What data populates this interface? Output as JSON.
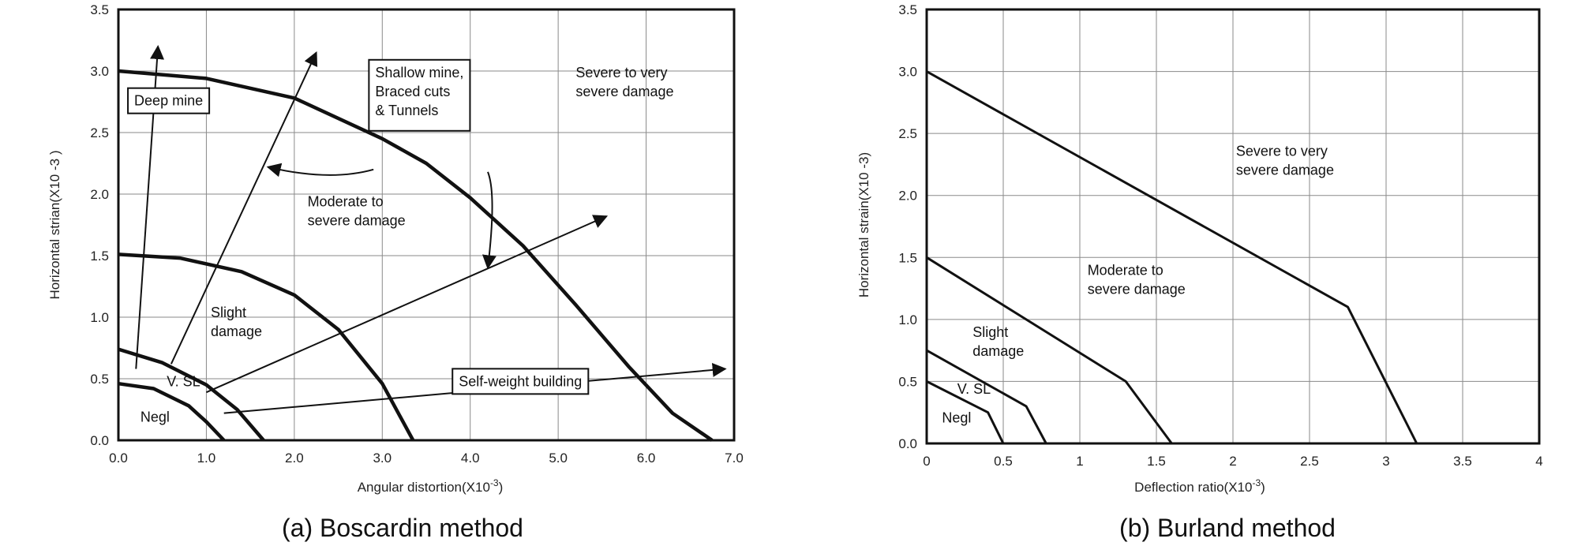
{
  "chart_data": [
    {
      "type": "line",
      "caption": "(a) Boscardin method",
      "xlabel_main": "Angular distortion(X10",
      "xlabel_exp": "-3",
      "xlabel_end": ")",
      "ylabel": "Horizontal strian(X10   -3 )",
      "xlim": [
        0,
        7
      ],
      "ylim": [
        0,
        3.5
      ],
      "x_ticks": [
        0,
        1,
        2,
        3,
        4,
        5,
        6,
        7
      ],
      "x_tick_labels": [
        "0.0",
        "1.0",
        "2.0",
        "3.0",
        "4.0",
        "5.0",
        "6.0",
        "7.0"
      ],
      "y_ticks": [
        0,
        0.5,
        1,
        1.5,
        2,
        2.5,
        3,
        3.5
      ],
      "y_tick_labels": [
        "0.0",
        "0.5",
        "1.0",
        "1.5",
        "2.0",
        "2.5",
        "3.0",
        "3.5"
      ],
      "grid": true,
      "series": [
        {
          "points": [
            [
              0,
              0.46
            ],
            [
              0.4,
              0.42
            ],
            [
              0.8,
              0.28
            ],
            [
              1.0,
              0.15
            ],
            [
              1.2,
              0.0
            ]
          ]
        },
        {
          "points": [
            [
              0,
              0.74
            ],
            [
              0.5,
              0.63
            ],
            [
              1.0,
              0.45
            ],
            [
              1.35,
              0.25
            ],
            [
              1.65,
              0.0
            ]
          ]
        },
        {
          "points": [
            [
              0,
              1.51
            ],
            [
              0.7,
              1.48
            ],
            [
              1.4,
              1.37
            ],
            [
              2.0,
              1.18
            ],
            [
              2.5,
              0.9
            ],
            [
              3.0,
              0.46
            ],
            [
              3.35,
              0.0
            ]
          ]
        },
        {
          "points": [
            [
              0,
              3.0
            ],
            [
              1.0,
              2.94
            ],
            [
              2.0,
              2.78
            ],
            [
              3.0,
              2.45
            ],
            [
              3.5,
              2.25
            ],
            [
              4.0,
              1.97
            ],
            [
              4.6,
              1.58
            ],
            [
              5.2,
              1.1
            ],
            [
              5.8,
              0.6
            ],
            [
              6.3,
              0.22
            ],
            [
              6.75,
              0.0
            ]
          ]
        }
      ],
      "arrows": [
        {
          "from": [
            0.2,
            0.58
          ],
          "to": [
            0.45,
            3.2
          ]
        },
        {
          "from": [
            0.6,
            0.62
          ],
          "to": [
            2.25,
            3.15
          ]
        },
        {
          "from": [
            1.0,
            0.39
          ],
          "to": [
            5.55,
            1.82
          ]
        },
        {
          "from": [
            1.2,
            0.22
          ],
          "to": [
            6.9,
            0.58
          ]
        }
      ],
      "callouts": [
        {
          "from": [
            2.9,
            2.2
          ],
          "via": [
            2.4,
            2.1
          ],
          "to": [
            1.7,
            2.22
          ]
        },
        {
          "from": [
            4.2,
            2.18
          ],
          "via": [
            4.3,
            2.0
          ],
          "to": [
            4.2,
            1.4
          ]
        }
      ],
      "regions": [
        {
          "lines": [
            "Severe to very",
            "severe damage"
          ],
          "at": [
            5.2,
            2.95
          ]
        },
        {
          "lines": [
            "Moderate to",
            "severe damage"
          ],
          "at": [
            2.15,
            1.9
          ]
        },
        {
          "lines": [
            "Slight",
            "damage"
          ],
          "at": [
            1.05,
            1.0
          ]
        },
        {
          "lines": [
            "V. SL"
          ],
          "at": [
            0.55,
            0.44
          ]
        },
        {
          "lines": [
            "Negl"
          ],
          "at": [
            0.25,
            0.15
          ]
        }
      ],
      "boxes": [
        {
          "lines": [
            "Deep mine"
          ],
          "at": [
            0.18,
            2.72
          ]
        },
        {
          "lines": [
            "Shallow mine,",
            "Braced cuts",
            "& Tunnels"
          ],
          "at": [
            2.92,
            2.95
          ]
        },
        {
          "lines": [
            "Self-weight building"
          ],
          "at": [
            3.87,
            0.44
          ]
        }
      ]
    },
    {
      "type": "line",
      "caption": "(b) Burland method",
      "xlabel_main": "Deflection ratio(X10",
      "xlabel_exp": "-3",
      "xlabel_end": ")",
      "ylabel": "Horizontal strain(X10 -3)",
      "xlim": [
        0,
        4
      ],
      "ylim": [
        0,
        3.5
      ],
      "x_ticks": [
        0,
        0.5,
        1,
        1.5,
        2,
        2.5,
        3,
        3.5,
        4
      ],
      "x_tick_labels": [
        "0",
        "0.5",
        "1",
        "1.5",
        "2",
        "2.5",
        "3",
        "3.5",
        "4"
      ],
      "y_ticks": [
        0,
        0.5,
        1,
        1.5,
        2,
        2.5,
        3,
        3.5
      ],
      "y_tick_labels": [
        "0.0",
        "0.5",
        "1.0",
        "1.5",
        "2.0",
        "2.5",
        "3.0",
        "3.5"
      ],
      "grid": true,
      "series": [
        {
          "points": [
            [
              0,
              0.5
            ],
            [
              0.4,
              0.25
            ],
            [
              0.5,
              0.0
            ]
          ]
        },
        {
          "points": [
            [
              0,
              0.75
            ],
            [
              0.65,
              0.3
            ],
            [
              0.78,
              0.0
            ]
          ]
        },
        {
          "points": [
            [
              0,
              1.5
            ],
            [
              1.3,
              0.5
            ],
            [
              1.6,
              0.0
            ]
          ]
        },
        {
          "points": [
            [
              0,
              3.0
            ],
            [
              2.75,
              1.1
            ],
            [
              3.2,
              0.0
            ]
          ]
        }
      ],
      "regions": [
        {
          "lines": [
            "Severe to very",
            "severe damage"
          ],
          "at": [
            2.02,
            2.32
          ]
        },
        {
          "lines": [
            "Moderate to",
            "severe damage"
          ],
          "at": [
            1.05,
            1.36
          ]
        },
        {
          "lines": [
            "Slight",
            "damage"
          ],
          "at": [
            0.3,
            0.86
          ]
        },
        {
          "lines": [
            "V. SL"
          ],
          "at": [
            0.2,
            0.4
          ]
        },
        {
          "lines": [
            "Negl"
          ],
          "at": [
            0.1,
            0.17
          ]
        }
      ]
    }
  ]
}
